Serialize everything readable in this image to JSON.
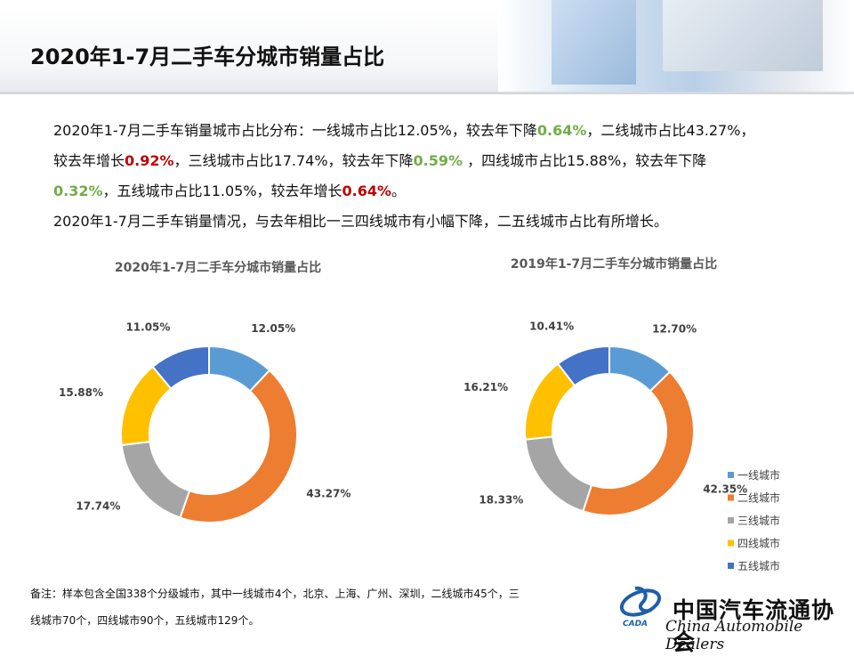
{
  "slide": {
    "title": "2020年1-7月二手车分城市销量占比",
    "paragraph": {
      "line1_a": "2020年1-7月二手车销量城市占比分布：一线城市占比12.05%，较去年下降",
      "line1_b": "0.64%",
      "line1_c": "，二线城市占比43.27%，",
      "line2_a": "较去年增长",
      "line2_b": "0.92%",
      "line2_c": "，三线城市占比17.74%，较去年下降",
      "line2_d": "0.59%",
      "line2_e": " ，四线城市占比15.88%，较去年下降",
      "line3_a": "0.32%",
      "line3_b": "，五线城市占比11.05%，较去年增长",
      "line3_c": "0.64%",
      "line3_d": "。",
      "line4": "2020年1-7月二手车销量情况，与去年相比一三四线城市有小幅下降，二五线城市占比有所增长。"
    },
    "note_line1": "备注：样本包含全国338个分级城市，其中一线城市4个，北京、上海、广州、深圳，二线城市45个，三",
    "note_line2": "线城市70个，四线城市90个，五线城市129个。",
    "logo": {
      "cn": "中国汽车流通协会",
      "en": "China Automobile Dealers",
      "icon_text": "CADA"
    },
    "colors": {
      "red_highlight": "#c00000",
      "green_highlight": "#70ad47"
    }
  },
  "chart_data": [
    {
      "type": "pie",
      "donut": true,
      "title": "2020年1-7月二手车分城市销量占比",
      "categories": [
        "一线城市",
        "二线城市",
        "三线城市",
        "四线城市",
        "五线城市"
      ],
      "values": [
        12.05,
        43.27,
        17.74,
        15.88,
        11.05
      ],
      "labels": [
        "12.05%",
        "43.27%",
        "17.74%",
        "15.88%",
        "11.05%"
      ],
      "colors": [
        "#5b9bd5",
        "#ed7d31",
        "#a5a5a5",
        "#ffc000",
        "#4472c4"
      ]
    },
    {
      "type": "pie",
      "donut": true,
      "title": "2019年1-7月二手车分城市销量占比",
      "categories": [
        "一线城市",
        "二线城市",
        "三线城市",
        "四线城市",
        "五线城市"
      ],
      "values": [
        12.7,
        42.35,
        18.33,
        16.21,
        10.41
      ],
      "labels": [
        "12.70%",
        "42.35%",
        "18.33%",
        "16.21%",
        "10.41%"
      ],
      "colors": [
        "#5b9bd5",
        "#ed7d31",
        "#a5a5a5",
        "#ffc000",
        "#4472c4"
      ],
      "legend": "bottom-right"
    }
  ]
}
